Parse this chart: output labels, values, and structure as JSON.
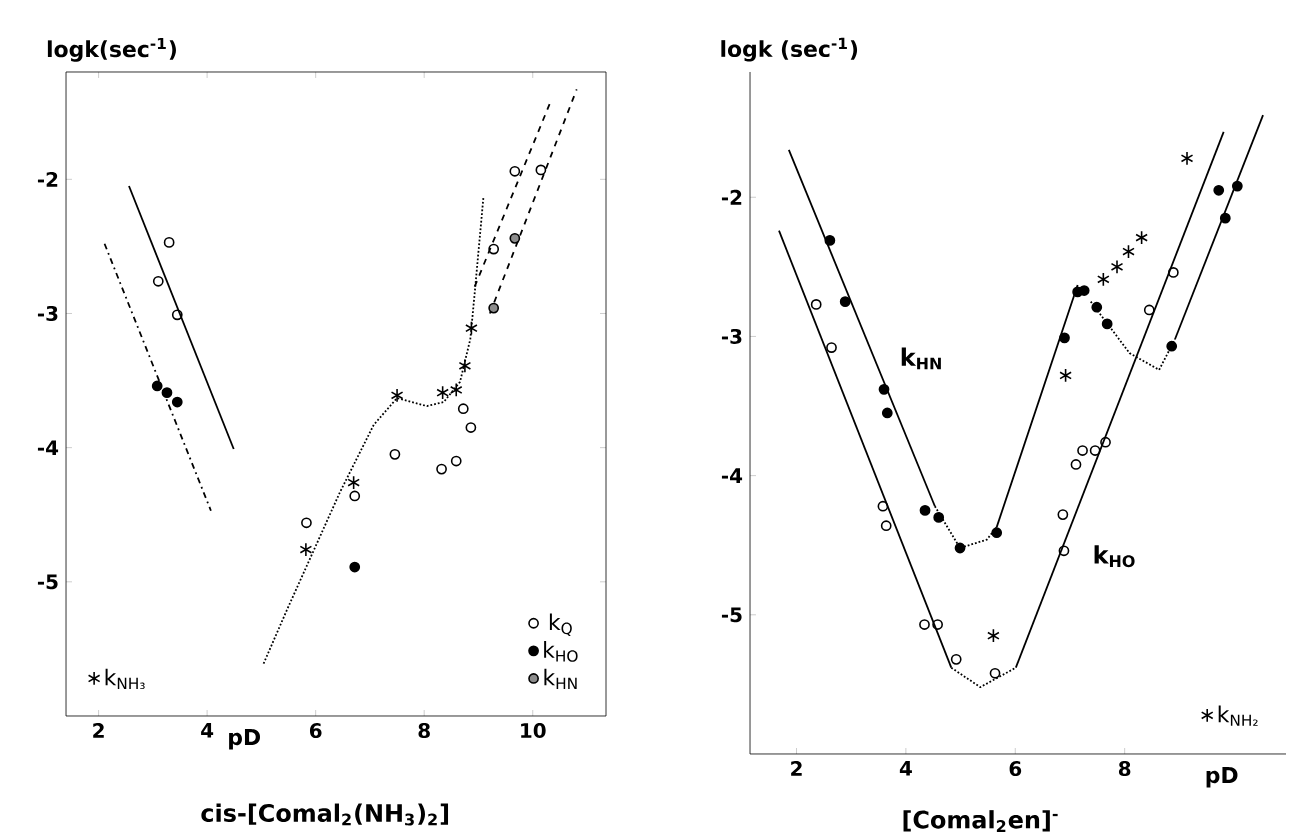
{
  "chart_data": [
    {
      "type": "scatter",
      "title": "cis-[Comal$_{2}$(NH$_{3}$)$_{2}$]",
      "xlabel": "pD",
      "ylabel": "logk(sec$^{-1}$)",
      "xlim": [
        1.4,
        11.35
      ],
      "ylim": [
        -6,
        -1.2
      ],
      "xticks": [
        2,
        4,
        6,
        8,
        10
      ],
      "yticks": [
        -5,
        -4,
        -3,
        -2
      ],
      "legend": "bottom",
      "series": [
        {
          "type": "line",
          "line_style": "solid",
          "color": "#000000",
          "x": [
            2.56,
            4.49
          ],
          "values": [
            -2.05,
            -4.01
          ]
        },
        {
          "type": "line",
          "line_style": "dashdotted",
          "color": "#000000",
          "x": [
            2.11,
            4.07
          ],
          "values": [
            -2.48,
            -4.47
          ]
        },
        {
          "type": "line",
          "line_style": "dotted",
          "color": "#000000",
          "x": [
            5.04,
            5.47,
            5.96,
            6.45,
            7.07,
            7.5,
            8.05,
            8.36,
            8.66,
            8.85,
            8.93,
            9.09
          ],
          "values": [
            -5.61,
            -5.21,
            -4.77,
            -4.33,
            -3.83,
            -3.63,
            -3.69,
            -3.66,
            -3.51,
            -3.19,
            -2.85,
            -2.14
          ]
        },
        {
          "type": "line",
          "line_style": "dashed",
          "color": "#000000",
          "x": [
            8.93,
            10.32
          ],
          "values": [
            -2.8,
            -1.43
          ]
        },
        {
          "type": "line",
          "line_style": "dashed",
          "color": "#000000",
          "x": [
            9.21,
            10.81
          ],
          "values": [
            -3.0,
            -1.33
          ]
        },
        {
          "name": "k$_{Q}$",
          "marker": "circle",
          "color": "#000000",
          "x": [
            3.3,
            3.1,
            3.45,
            5.83,
            6.72,
            7.46,
            8.32,
            8.59,
            8.72,
            8.86,
            9.28,
            9.67,
            10.15
          ],
          "values": [
            -2.47,
            -2.76,
            -3.01,
            -4.56,
            -4.36,
            -4.05,
            -4.16,
            -4.1,
            -3.71,
            -3.85,
            -2.52,
            -1.94,
            -1.93
          ]
        },
        {
          "name": "k$_{HO}$",
          "marker": "filled circle",
          "color": "#000000",
          "x": [
            3.08,
            3.26,
            3.45,
            6.72
          ],
          "values": [
            -3.54,
            -3.59,
            -3.66,
            -4.89
          ]
        },
        {
          "name": "k$_{HN}$",
          "marker": "half circle",
          "color": "#000000",
          "x": [
            9.28,
            9.67
          ],
          "values": [
            -2.96,
            -2.44
          ]
        },
        {
          "name": "k$_{NH₃}$",
          "marker": "cross",
          "color": "#000000",
          "x": [
            5.82,
            6.7,
            7.5,
            8.34,
            8.59,
            8.75,
            8.87
          ],
          "values": [
            -4.76,
            -4.26,
            -3.61,
            -3.59,
            -3.57,
            -3.39,
            -3.11
          ]
        }
      ]
    },
    {
      "type": "scatter",
      "title": "[Comal$_{2}$en]$^{-}$",
      "xlabel": "pD",
      "ylabel": "logk (sec$^{-1}$)",
      "xlim": [
        1.15,
        10.95
      ],
      "ylim": [
        -6,
        -1.1
      ],
      "xticks": [
        2,
        4,
        6,
        8
      ],
      "yticks": [
        -5,
        -4,
        -3,
        -2
      ],
      "legend": "bottom right",
      "annotations": [
        "k$_{HN}$",
        "k$_{HO}$"
      ],
      "series": [
        {
          "type": "line",
          "line_style": "solid",
          "color": "#000000",
          "x": [
            1.86,
            4.53
          ],
          "values": [
            -1.66,
            -4.22
          ]
        },
        {
          "type": "line",
          "line_style": "dotted",
          "color": "#000000",
          "x": [
            4.53,
            4.99,
            5.48,
            5.66
          ],
          "values": [
            -4.22,
            -4.52,
            -4.46,
            -4.37
          ]
        },
        {
          "type": "line",
          "line_style": "solid",
          "color": "#000000",
          "x": [
            5.66,
            7.14
          ],
          "values": [
            -4.37,
            -2.63
          ]
        },
        {
          "type": "line",
          "line_style": "dotted",
          "color": "#000000",
          "x": [
            7.38,
            8.09,
            8.63,
            8.92
          ],
          "values": [
            -2.75,
            -3.12,
            -3.24,
            -3.02
          ]
        },
        {
          "type": "line",
          "line_style": "solid",
          "color": "#000000",
          "x": [
            8.92,
            10.53
          ],
          "values": [
            -3.02,
            -1.41
          ]
        },
        {
          "type": "line",
          "line_style": "solid",
          "color": "#000000",
          "x": [
            1.68,
            4.83
          ],
          "values": [
            -2.24,
            -5.38
          ]
        },
        {
          "type": "line",
          "line_style": "dotted",
          "color": "#000000",
          "x": [
            4.83,
            5.36,
            6.01
          ],
          "values": [
            -5.38,
            -5.52,
            -5.38
          ]
        },
        {
          "type": "line",
          "line_style": "solid",
          "color": "#000000",
          "x": [
            6.01,
            9.81
          ],
          "values": [
            -5.38,
            -1.53
          ]
        },
        {
          "marker": "filled circle",
          "color": "#000000",
          "x": [
            2.61,
            2.89,
            3.6,
            3.66,
            4.35,
            4.6,
            4.99,
            5.66,
            6.9,
            7.14,
            7.26,
            7.49,
            7.68,
            8.86,
            9.72,
            9.84,
            10.06
          ],
          "values": [
            -2.31,
            -2.75,
            -3.38,
            -3.55,
            -4.25,
            -4.3,
            -4.52,
            -4.41,
            -3.01,
            -2.68,
            -2.67,
            -2.79,
            -2.91,
            -3.07,
            -1.95,
            -2.15,
            -1.92
          ]
        },
        {
          "marker": "circle",
          "color": "#000000",
          "x": [
            2.36,
            2.64,
            3.58,
            3.64,
            4.34,
            4.58,
            4.92,
            5.63,
            6.87,
            6.89,
            7.11,
            7.23,
            7.46,
            7.65,
            8.45,
            8.89
          ],
          "values": [
            -2.77,
            -3.08,
            -4.22,
            -4.36,
            -5.07,
            -5.07,
            -5.32,
            -5.42,
            -4.28,
            -4.54,
            -3.92,
            -3.82,
            -3.82,
            -3.76,
            -2.81,
            -2.54
          ]
        },
        {
          "name": "k$_{NH₂}$",
          "marker": "cross",
          "color": "#000000",
          "x": [
            5.6,
            6.92,
            7.61,
            7.86,
            8.07,
            8.31,
            9.14
          ],
          "values": [
            -5.15,
            -3.28,
            -2.59,
            -2.5,
            -2.39,
            -2.29,
            -1.72
          ]
        }
      ]
    }
  ]
}
